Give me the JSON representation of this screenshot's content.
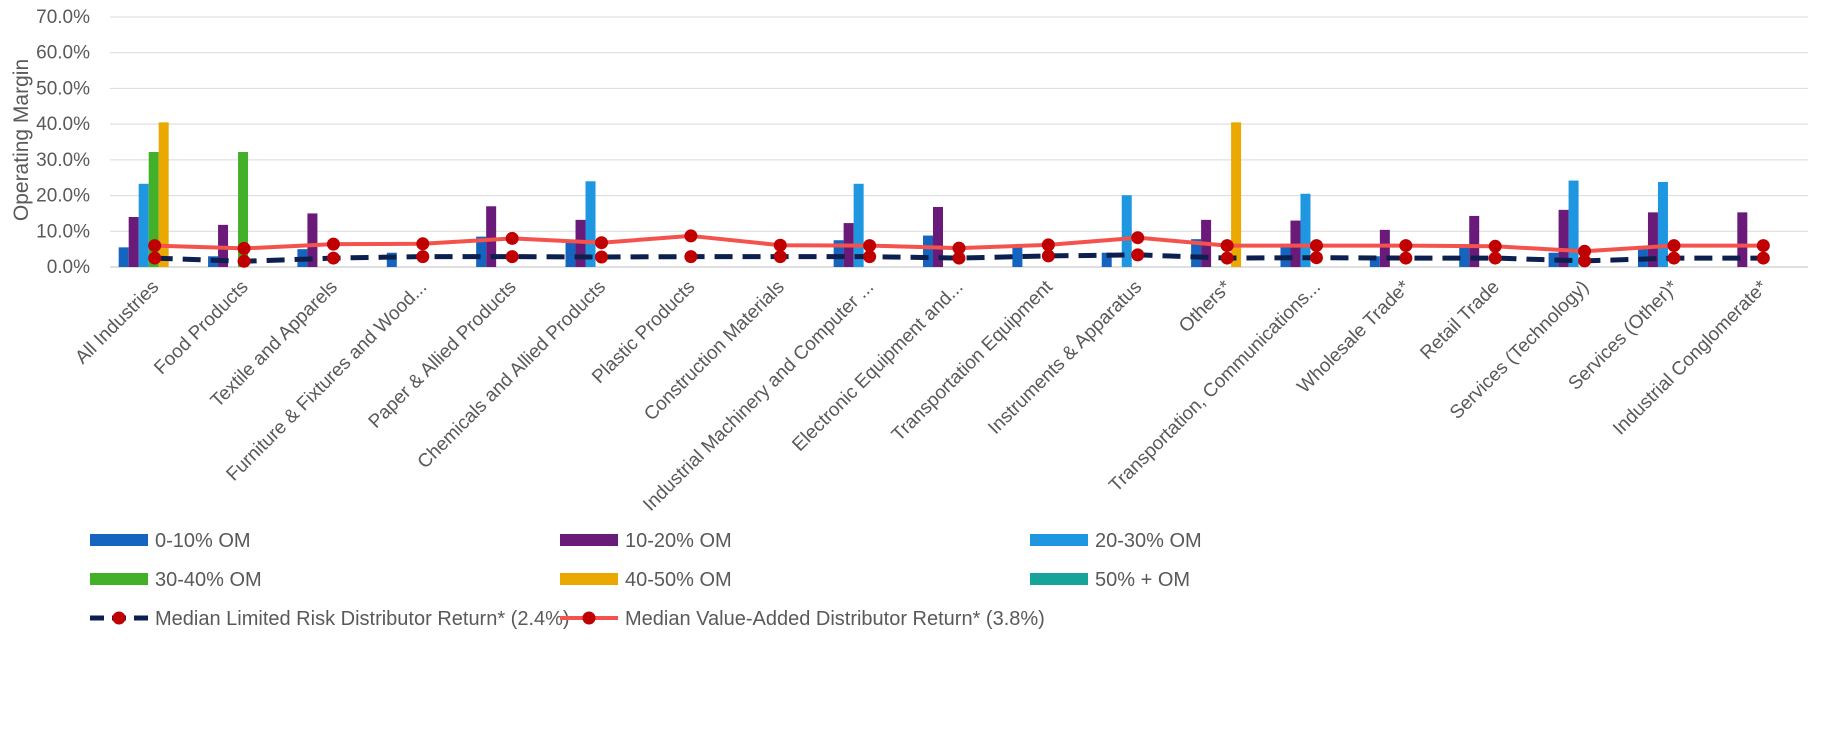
{
  "chart_data": {
    "type": "bar",
    "ylabel": "Operating Margin",
    "xlabel": "",
    "ylim": [
      0,
      70
    ],
    "y_ticks": [
      "0.0%",
      "10.0%",
      "20.0%",
      "30.0%",
      "40.0%",
      "50.0%",
      "60.0%",
      "70.0%"
    ],
    "grid": true,
    "legend_position": "bottom",
    "categories": [
      "All Industries",
      "Food Products",
      "Textile and Apparels",
      "Furniture & Fixtures and Wood...",
      "Paper & Allied Products",
      "Chemicals and Allied Products",
      "Plastic Products",
      "Construction Materials",
      "Industrial Machinery and Computer ...",
      "Electronic Equipment and...",
      "Transportation Equipment",
      "Instruments & Apparatus",
      "Others*",
      "Transportation, Communications...",
      "Wholesale Trade*",
      "Retail Trade",
      "Services (Technology)",
      "Services (Other)*",
      "Industrial Conglomerate*"
    ],
    "series": [
      {
        "name": "0-10% OM",
        "color": "#1565C0",
        "kind": "bar",
        "values": [
          5.5,
          3.0,
          5.0,
          4.0,
          8.5,
          7.0,
          0,
          0,
          7.5,
          8.8,
          5.5,
          4.0,
          7.8,
          6.5,
          3.0,
          5.5,
          4.0,
          5.5,
          0
        ]
      },
      {
        "name": "10-20% OM",
        "color": "#6A1B7A",
        "kind": "bar",
        "values": [
          14.0,
          11.8,
          15.0,
          0,
          17.0,
          13.2,
          0,
          0,
          12.3,
          16.8,
          0,
          0,
          13.2,
          13.0,
          10.4,
          14.3,
          16.0,
          15.3,
          15.3
        ]
      },
      {
        "name": "20-30% OM",
        "color": "#1E96E0",
        "kind": "bar",
        "values": [
          23.3,
          0,
          0,
          0,
          0,
          24.0,
          0,
          0,
          23.3,
          0,
          0,
          20.1,
          0,
          20.5,
          0,
          0,
          24.2,
          23.8,
          0
        ]
      },
      {
        "name": "30-40% OM",
        "color": "#43B02A",
        "kind": "bar",
        "values": [
          32.2,
          32.2,
          0,
          0,
          0,
          0,
          0,
          0,
          0,
          0,
          0,
          0,
          0,
          0,
          0,
          0,
          0,
          0,
          0
        ]
      },
      {
        "name": "40-50% OM",
        "color": "#EAA800",
        "kind": "bar",
        "values": [
          40.5,
          0,
          0,
          0,
          0,
          0,
          0,
          0,
          0,
          0,
          0,
          0,
          40.5,
          0,
          0,
          0,
          0,
          0,
          0
        ]
      },
      {
        "name": "50% + OM",
        "color": "#16A39A",
        "kind": "bar",
        "values": [
          0,
          0,
          0,
          0,
          0,
          0,
          0,
          0,
          0,
          0,
          0,
          0,
          0,
          0,
          0,
          0,
          0,
          0,
          0
        ]
      },
      {
        "name": "Median Limited Risk Distributor Return* (2.4%)",
        "color": "#0D1F4F",
        "marker_color": "#C00000",
        "kind": "dashed-line",
        "values": [
          2.5,
          1.6,
          2.5,
          2.9,
          2.9,
          2.8,
          2.9,
          2.9,
          2.9,
          2.5,
          3.1,
          3.4,
          2.5,
          2.6,
          2.5,
          2.5,
          1.7,
          2.5,
          2.5
        ]
      },
      {
        "name": "Median Value-Added Distributor Return* (3.8%)",
        "color": "#F4524D",
        "marker_color": "#C00000",
        "kind": "line",
        "values": [
          6.0,
          5.2,
          6.4,
          6.5,
          8.0,
          6.8,
          8.7,
          6.1,
          6.0,
          5.3,
          6.2,
          8.2,
          6.0,
          6.0,
          6.0,
          5.8,
          4.4,
          6.0,
          6.0
        ]
      }
    ]
  }
}
